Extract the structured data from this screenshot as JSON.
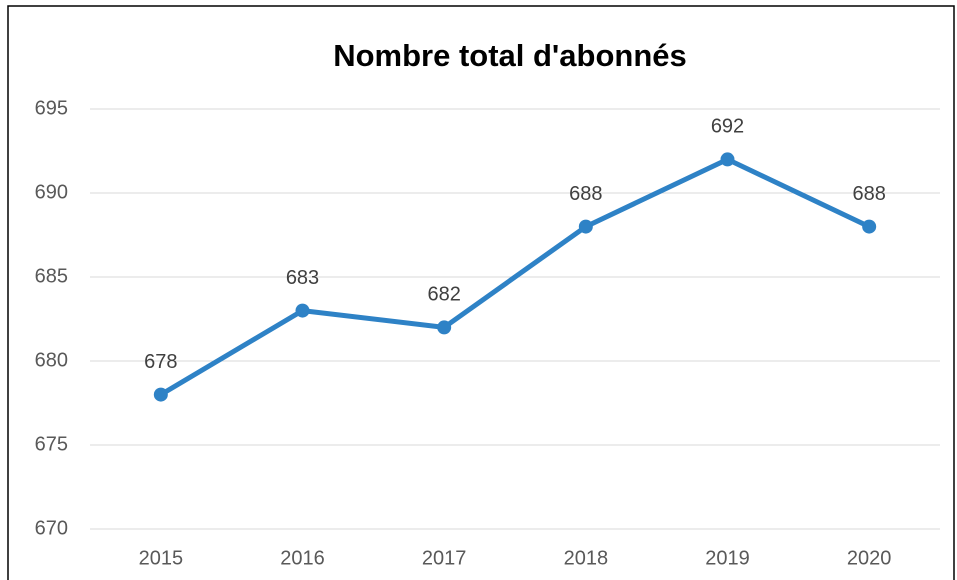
{
  "chart_data": {
    "type": "line",
    "title": "Nombre total d'abonnés",
    "categories": [
      "2015",
      "2016",
      "2017",
      "2018",
      "2019",
      "2020"
    ],
    "series": [
      {
        "name": "Nombre total d'abonnés",
        "color": "#2e82c6",
        "values": [
          678,
          683,
          682,
          688,
          692,
          688
        ]
      }
    ],
    "ylim": [
      670,
      695
    ],
    "yticks": [
      670,
      675,
      680,
      685,
      690,
      695
    ],
    "grid": true
  }
}
